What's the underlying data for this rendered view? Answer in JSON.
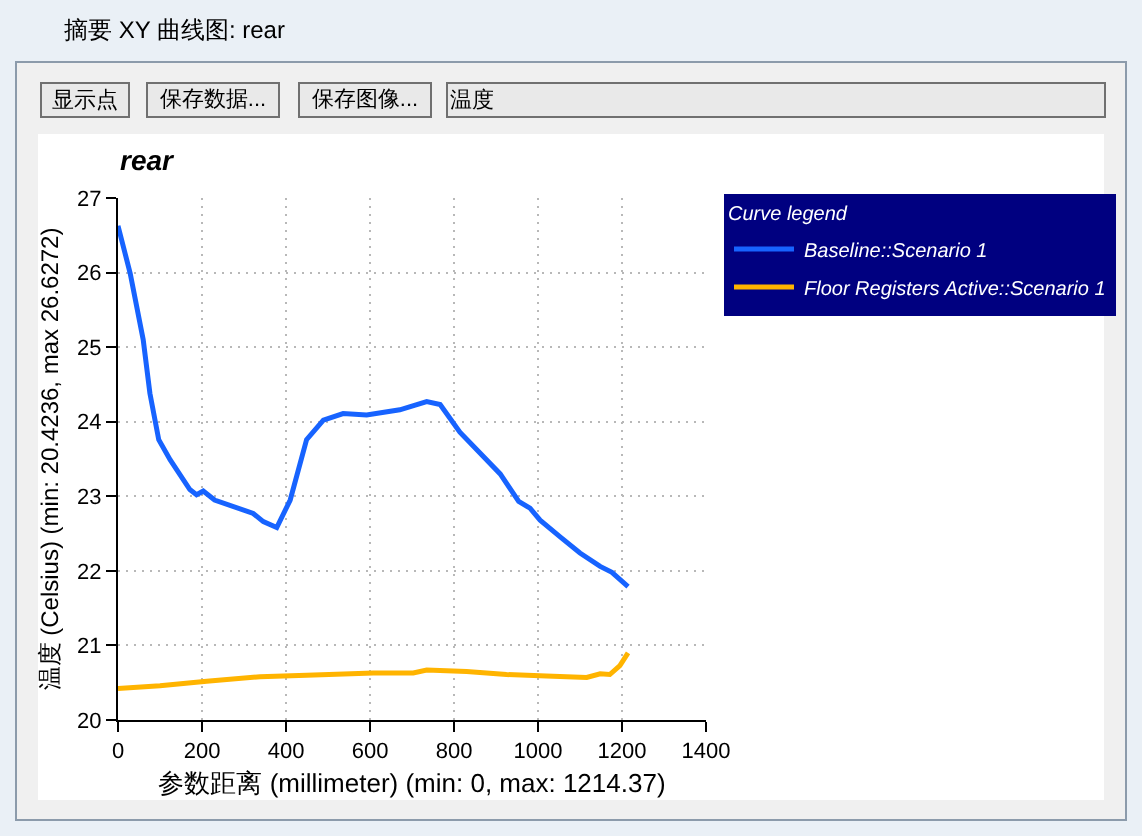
{
  "chart_data": {
    "type": "line",
    "title": "rear",
    "xlabel": "参数距离 (millimeter) (min: 0, max: 1214.37)",
    "ylabel": "温度 (Celsius) (min: 20.4236, max 26.6272)",
    "legend_title": "Curve legend",
    "annotations": [
      "摘要 XY 曲线图: rear",
      "显示点",
      "保存数据...",
      "保存图像...",
      "温度"
    ],
    "series": [
      {
        "name": "Baseline::Scenario 1",
        "color": "#1763ff",
        "x": [
          0,
          29,
          60,
          76,
          97,
          124,
          171,
          187,
          203,
          230,
          322,
          346,
          378,
          410,
          449,
          489,
          536,
          592,
          671,
          735,
          767,
          814,
          910,
          954,
          981,
          1005,
          1052,
          1100,
          1148,
          1176,
          1214.37
        ],
        "values": [
          26.6272,
          25.99,
          25.1,
          24.38,
          23.76,
          23.49,
          23.09,
          23.02,
          23.07,
          22.95,
          22.77,
          22.66,
          22.58,
          22.95,
          23.76,
          24.02,
          24.11,
          24.09,
          24.16,
          24.27,
          24.23,
          23.86,
          23.3,
          22.93,
          22.84,
          22.68,
          22.46,
          22.24,
          22.06,
          21.98,
          21.79
        ]
      },
      {
        "name": "Floor Registers Active::Scenario 1",
        "color": "#ffb400",
        "x": [
          0,
          100,
          211,
          338,
          449,
          608,
          703,
          735,
          830,
          925,
          1020,
          1116,
          1148,
          1171,
          1195,
          1214.37
        ],
        "values": [
          20.4236,
          20.46,
          20.52,
          20.58,
          20.6,
          20.63,
          20.63,
          20.67,
          20.65,
          20.61,
          20.59,
          20.57,
          20.62,
          20.61,
          20.73,
          20.9
        ]
      }
    ],
    "xlim": [
      0,
      1400
    ],
    "xticks": [
      0,
      200,
      400,
      600,
      800,
      1000,
      1200,
      1400
    ],
    "ylim": [
      20,
      27
    ],
    "yticks": [
      20,
      21,
      22,
      23,
      24,
      25,
      26,
      27
    ],
    "grid": true,
    "legend": "top right"
  }
}
